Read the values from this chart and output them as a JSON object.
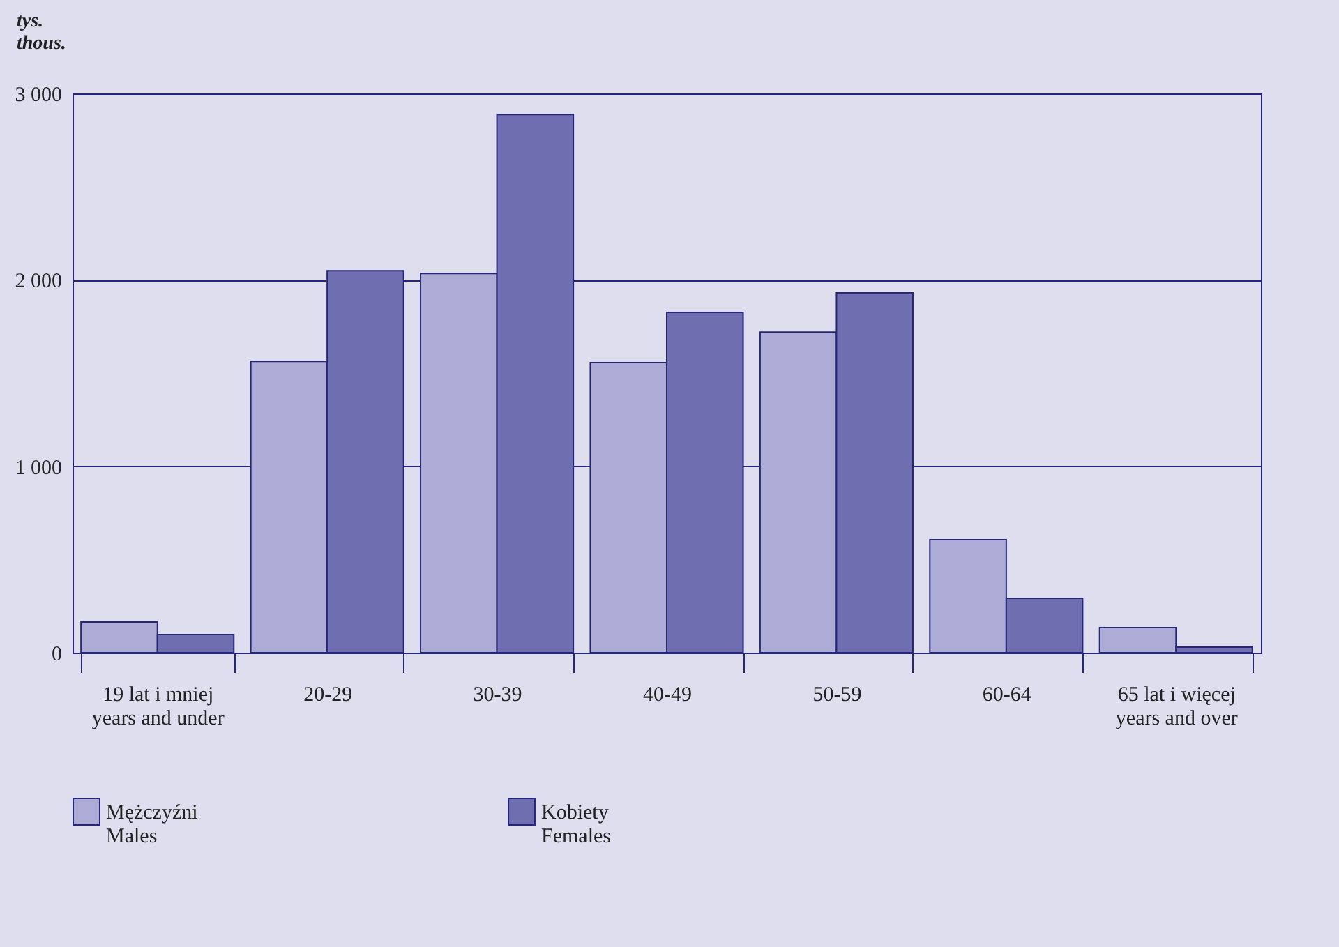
{
  "chart_data": {
    "type": "bar",
    "ylabel": "tys.\nthous.",
    "categories": [
      "19 lat i mniej\nyears and under",
      "20-29",
      "30-39",
      "40-49",
      "50-59",
      "60-64",
      "65 lat i więcej\nyears and over"
    ],
    "series": [
      {
        "name": "Mężczyźni\nMales",
        "color": "#acacd6",
        "values": [
          165,
          1563,
          2034,
          1556,
          1720,
          606,
          135
        ]
      },
      {
        "name": "Kobiety\nFemales",
        "color": "#6e6eb0",
        "values": [
          97,
          2049,
          2887,
          1825,
          1930,
          292,
          30
        ]
      }
    ],
    "ylim": [
      0,
      3000
    ],
    "yticks": [
      {
        "value": 0,
        "label": "0"
      },
      {
        "value": 1000,
        "label": "1 000"
      },
      {
        "value": 2000,
        "label": "2 000"
      },
      {
        "value": 3000,
        "label": "3 000"
      }
    ],
    "grid": "y",
    "legend": "bottom"
  }
}
